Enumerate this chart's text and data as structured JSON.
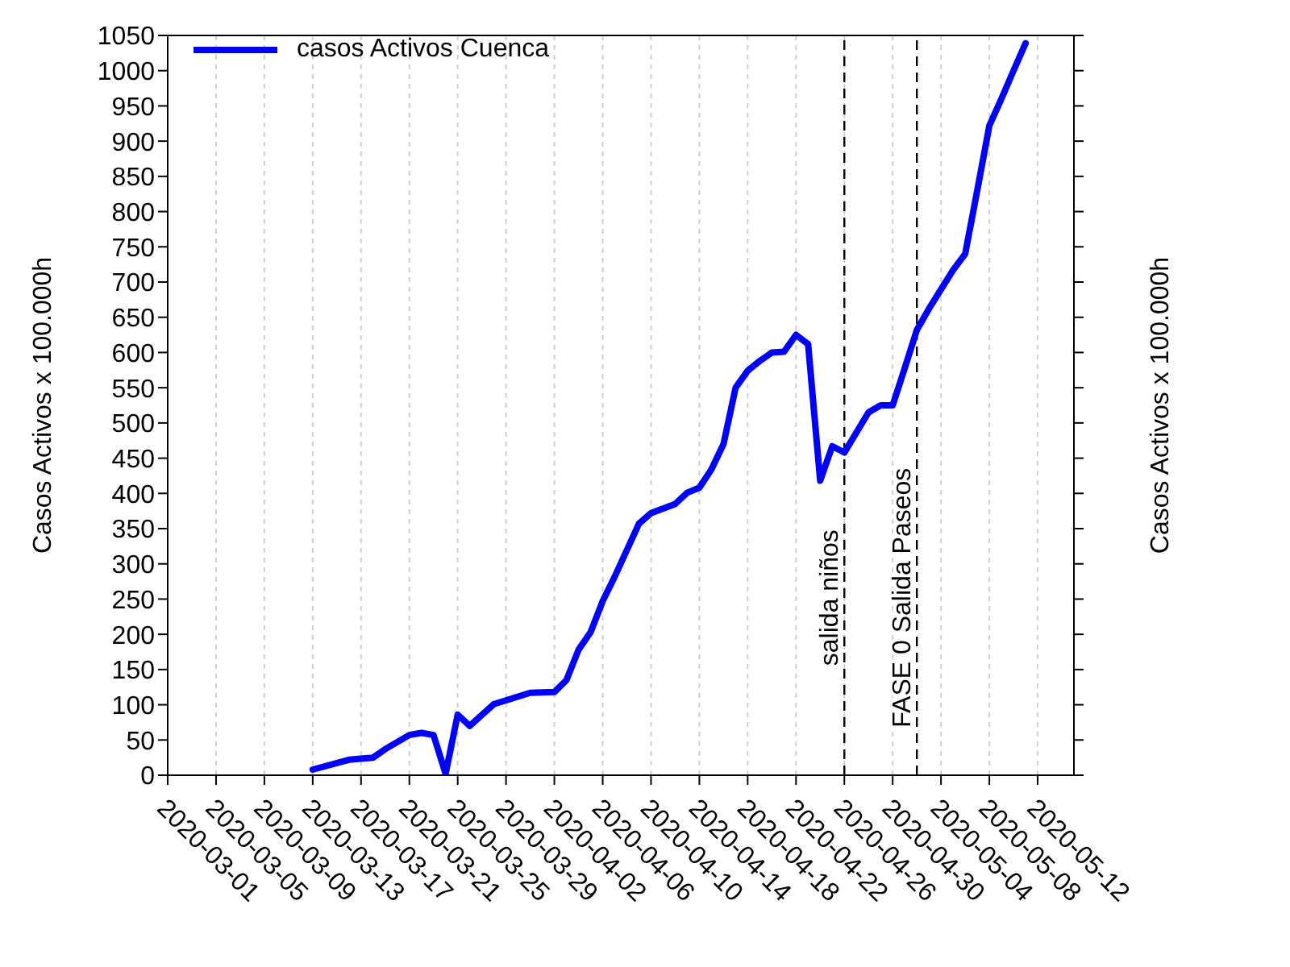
{
  "chart_data": {
    "type": "line",
    "ylabel": "Casos Activos x 100.000h",
    "y2label": "Casos Activos x 100.000h",
    "x": [
      "2020-03-13",
      "2020-03-16",
      "2020-03-18",
      "2020-03-19",
      "2020-03-21",
      "2020-03-22",
      "2020-03-23",
      "2020-03-24",
      "2020-03-25",
      "2020-03-26",
      "2020-03-28",
      "2020-03-31",
      "2020-04-02",
      "2020-04-03",
      "2020-04-04",
      "2020-04-05",
      "2020-04-06",
      "2020-04-07",
      "2020-04-09",
      "2020-04-10",
      "2020-04-12",
      "2020-04-13",
      "2020-04-14",
      "2020-04-15",
      "2020-04-16",
      "2020-04-17",
      "2020-04-18",
      "2020-04-19",
      "2020-04-20",
      "2020-04-21",
      "2020-04-22",
      "2020-04-23",
      "2020-04-24",
      "2020-04-25",
      "2020-04-26",
      "2020-04-28",
      "2020-04-29",
      "2020-04-30",
      "2020-05-01",
      "2020-05-02",
      "2020-05-03",
      "2020-05-05",
      "2020-05-06",
      "2020-05-07",
      "2020-05-08",
      "2020-05-09",
      "2020-05-10",
      "2020-05-11"
    ],
    "series": [
      {
        "name": "casos Activos Cuenca",
        "color": "#0000ff",
        "values": [
          8,
          22,
          25,
          37,
          57,
          60,
          57,
          2,
          86,
          70,
          101,
          117,
          118,
          135,
          178,
          203,
          247,
          282,
          357,
          372,
          385,
          401,
          408,
          434,
          470,
          550,
          574,
          588,
          600,
          601,
          625,
          612,
          418,
          467,
          458,
          515,
          525,
          525,
          578,
          632,
          662,
          717,
          740,
          830,
          922,
          960,
          1000,
          1039
        ]
      }
    ],
    "xlim": [
      "2020-03-01",
      "2020-05-15"
    ],
    "xticks": [
      "2020-03-01",
      "2020-03-05",
      "2020-03-09",
      "2020-03-13",
      "2020-03-17",
      "2020-03-21",
      "2020-03-25",
      "2020-03-29",
      "2020-04-02",
      "2020-04-06",
      "2020-04-10",
      "2020-04-14",
      "2020-04-18",
      "2020-04-22",
      "2020-04-26",
      "2020-04-30",
      "2020-05-04",
      "2020-05-08",
      "2020-05-12"
    ],
    "ylim": [
      0,
      1050
    ],
    "yticks": [
      0,
      50,
      100,
      150,
      200,
      250,
      300,
      350,
      400,
      450,
      500,
      550,
      600,
      650,
      700,
      750,
      800,
      850,
      900,
      950,
      1000,
      1050
    ],
    "ref_lines": [
      {
        "axis": "x",
        "value": "2020-04-26",
        "label": "salida niños",
        "color": "#000000",
        "line_style": "dashed"
      },
      {
        "axis": "x",
        "value": "2020-05-02",
        "label": "FASE 0 Salida Paseos",
        "color": "#000000",
        "line_style": "dashed"
      }
    ],
    "grid": true,
    "legend": "top left",
    "marker": "none",
    "line_style": "solid"
  }
}
